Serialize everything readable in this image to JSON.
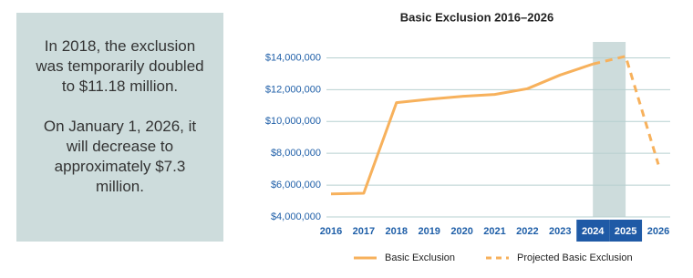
{
  "panel": {
    "paragraphs": [
      "In 2018, the exclusion was temporarily doubled to $11.18 million.",
      "On January 1, 2026, it will decrease to approximately $7.3 million."
    ]
  },
  "chart_data": {
    "type": "line",
    "title": "Basic Exclusion 2016–2026",
    "x": [
      2016,
      2017,
      2018,
      2019,
      2020,
      2021,
      2022,
      2023,
      2024,
      2025,
      2026
    ],
    "xlim": [
      2016,
      2026
    ],
    "xticks": [
      2016,
      2017,
      2018,
      2019,
      2020,
      2021,
      2022,
      2023,
      2024,
      2025,
      2026
    ],
    "highlight_range": [
      2024,
      2025
    ],
    "ylim": [
      4000000,
      15000000
    ],
    "yticks": [
      {
        "value": 4000000,
        "label": "$4,000,000"
      },
      {
        "value": 6000000,
        "label": "$6,000,000"
      },
      {
        "value": 8000000,
        "label": "$8,000,000"
      },
      {
        "value": 10000000,
        "label": "$10,000,000"
      },
      {
        "value": 12000000,
        "label": "$12,000,000"
      },
      {
        "value": 14000000,
        "label": "$14,000,000"
      }
    ],
    "grid": true,
    "legend": "bottom",
    "series": [
      {
        "name": "Basic Exclusion",
        "color": "#f7b15c",
        "dashed": false,
        "values": [
          5450000,
          5490000,
          11180000,
          11400000,
          11580000,
          11700000,
          12060000,
          12920000,
          13610000,
          null,
          null
        ]
      },
      {
        "name": "Projected Basic Exclusion",
        "color": "#f7b15c",
        "dashed": true,
        "values": [
          null,
          null,
          null,
          null,
          null,
          null,
          null,
          null,
          13610000,
          14100000,
          7300000
        ]
      }
    ]
  }
}
